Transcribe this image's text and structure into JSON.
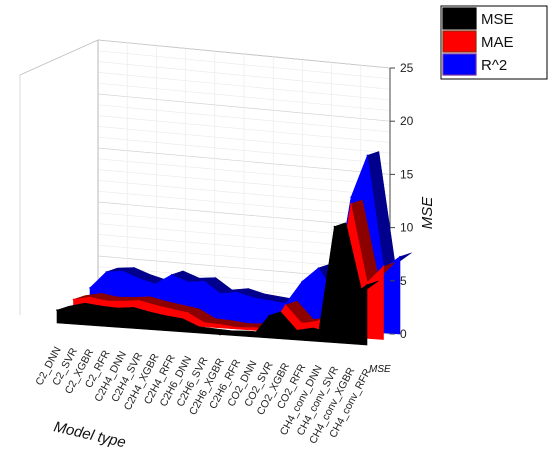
{
  "chart_data": {
    "type": "area",
    "title": "",
    "xlabel": "Model type",
    "ylabel": "MSE",
    "zlabel": "MSE",
    "ylim": [
      0,
      25
    ],
    "yticks": [
      "0",
      "5",
      "10",
      "15",
      "20",
      "25"
    ],
    "grid": true,
    "legend_position": "top-right",
    "categories": [
      "C2_DNN",
      "C2_SVR",
      "C2_XGBR",
      "C2_RFR",
      "C2H4_DNN",
      "C2H4_SVR",
      "C2H4_XGBR",
      "C2H4_RFR",
      "C2H6_DNN",
      "C2H6_SVR",
      "C2H6_XGBR",
      "C2H6_RFR",
      "CO2_DNN",
      "CO2_SVR",
      "CO2_XGBR",
      "CO2_RFR",
      "CH4_conv_DNN",
      "CH4_conv_SVR",
      "CH4_conv_XGBR",
      "CH4_conv_RFR"
    ],
    "series": [
      {
        "name": "MSE",
        "color": "#000000",
        "values": [
          1.5,
          2.0,
          1.8,
          1.7,
          1.9,
          1.5,
          1.2,
          1.0,
          0.2,
          0.1,
          0.0,
          0.1,
          0.1,
          2.6,
          0.6,
          1.0,
          0.6,
          13.5,
          5.5,
          7.0
        ]
      },
      {
        "name": "MAE",
        "color": "#ff0000",
        "values": [
          2.1,
          2.5,
          2.2,
          2.3,
          2.5,
          2.1,
          1.8,
          1.5,
          0.5,
          0.4,
          0.2,
          0.3,
          0.3,
          3.2,
          1.2,
          1.6,
          3.5,
          15.5,
          6.5,
          8.5
        ]
      },
      {
        "name": "R^2",
        "color": "#0000ff",
        "values": [
          2.8,
          4.8,
          5.0,
          4.3,
          3.8,
          5.0,
          4.3,
          4.5,
          3.2,
          3.5,
          3.0,
          2.8,
          2.6,
          5.3,
          7.0,
          4.2,
          15.5,
          20.5,
          7.5,
          9.0
        ]
      }
    ]
  }
}
